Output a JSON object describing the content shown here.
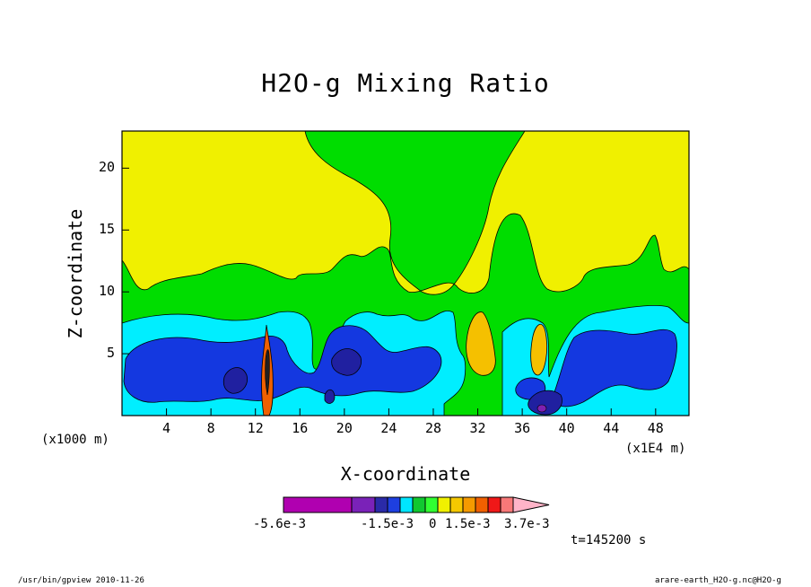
{
  "chart_data": {
    "type": "heatmap",
    "title": "H2O-g Mixing Ratio",
    "xlabel": "X-coordinate",
    "ylabel": "Z-coordinate",
    "x_unit_label": "(x1000 m)",
    "x_scale_label": "(x1E4 m)",
    "x_ticks": [
      "4",
      "8",
      "12",
      "16",
      "20",
      "24",
      "28",
      "32",
      "36",
      "40",
      "44",
      "48"
    ],
    "y_ticks": [
      "5",
      "10",
      "15",
      "20"
    ],
    "xlim": [
      0,
      51
    ],
    "ylim": [
      0,
      23
    ],
    "colorbar": {
      "colors": [
        "#b000b0",
        "#7a22b8",
        "#2a2aa8",
        "#1e3fe0",
        "#00e6ff",
        "#10c830",
        "#32ff32",
        "#f0f000",
        "#f5c800",
        "#f59a00",
        "#f06000",
        "#f01818",
        "#f87878",
        "#ffb4c8"
      ],
      "tick_labels": [
        "-5.6e-3",
        "-1.5e-3",
        "0",
        "1.5e-3",
        "3.7e-3"
      ]
    },
    "bands": {
      "green": "#00dd00",
      "yellow": "#f0f000",
      "cyan": "#00eeff",
      "blue": "#1438e0",
      "darkblue": "#2020a0",
      "orange": "#f5c000",
      "purple": "#8020b0"
    }
  },
  "time_label": "t=145200 s",
  "footer": {
    "left": "/usr/bin/gpview  2010-11-26",
    "right": "arare-earth_H2O-g.nc@H2O-g"
  }
}
